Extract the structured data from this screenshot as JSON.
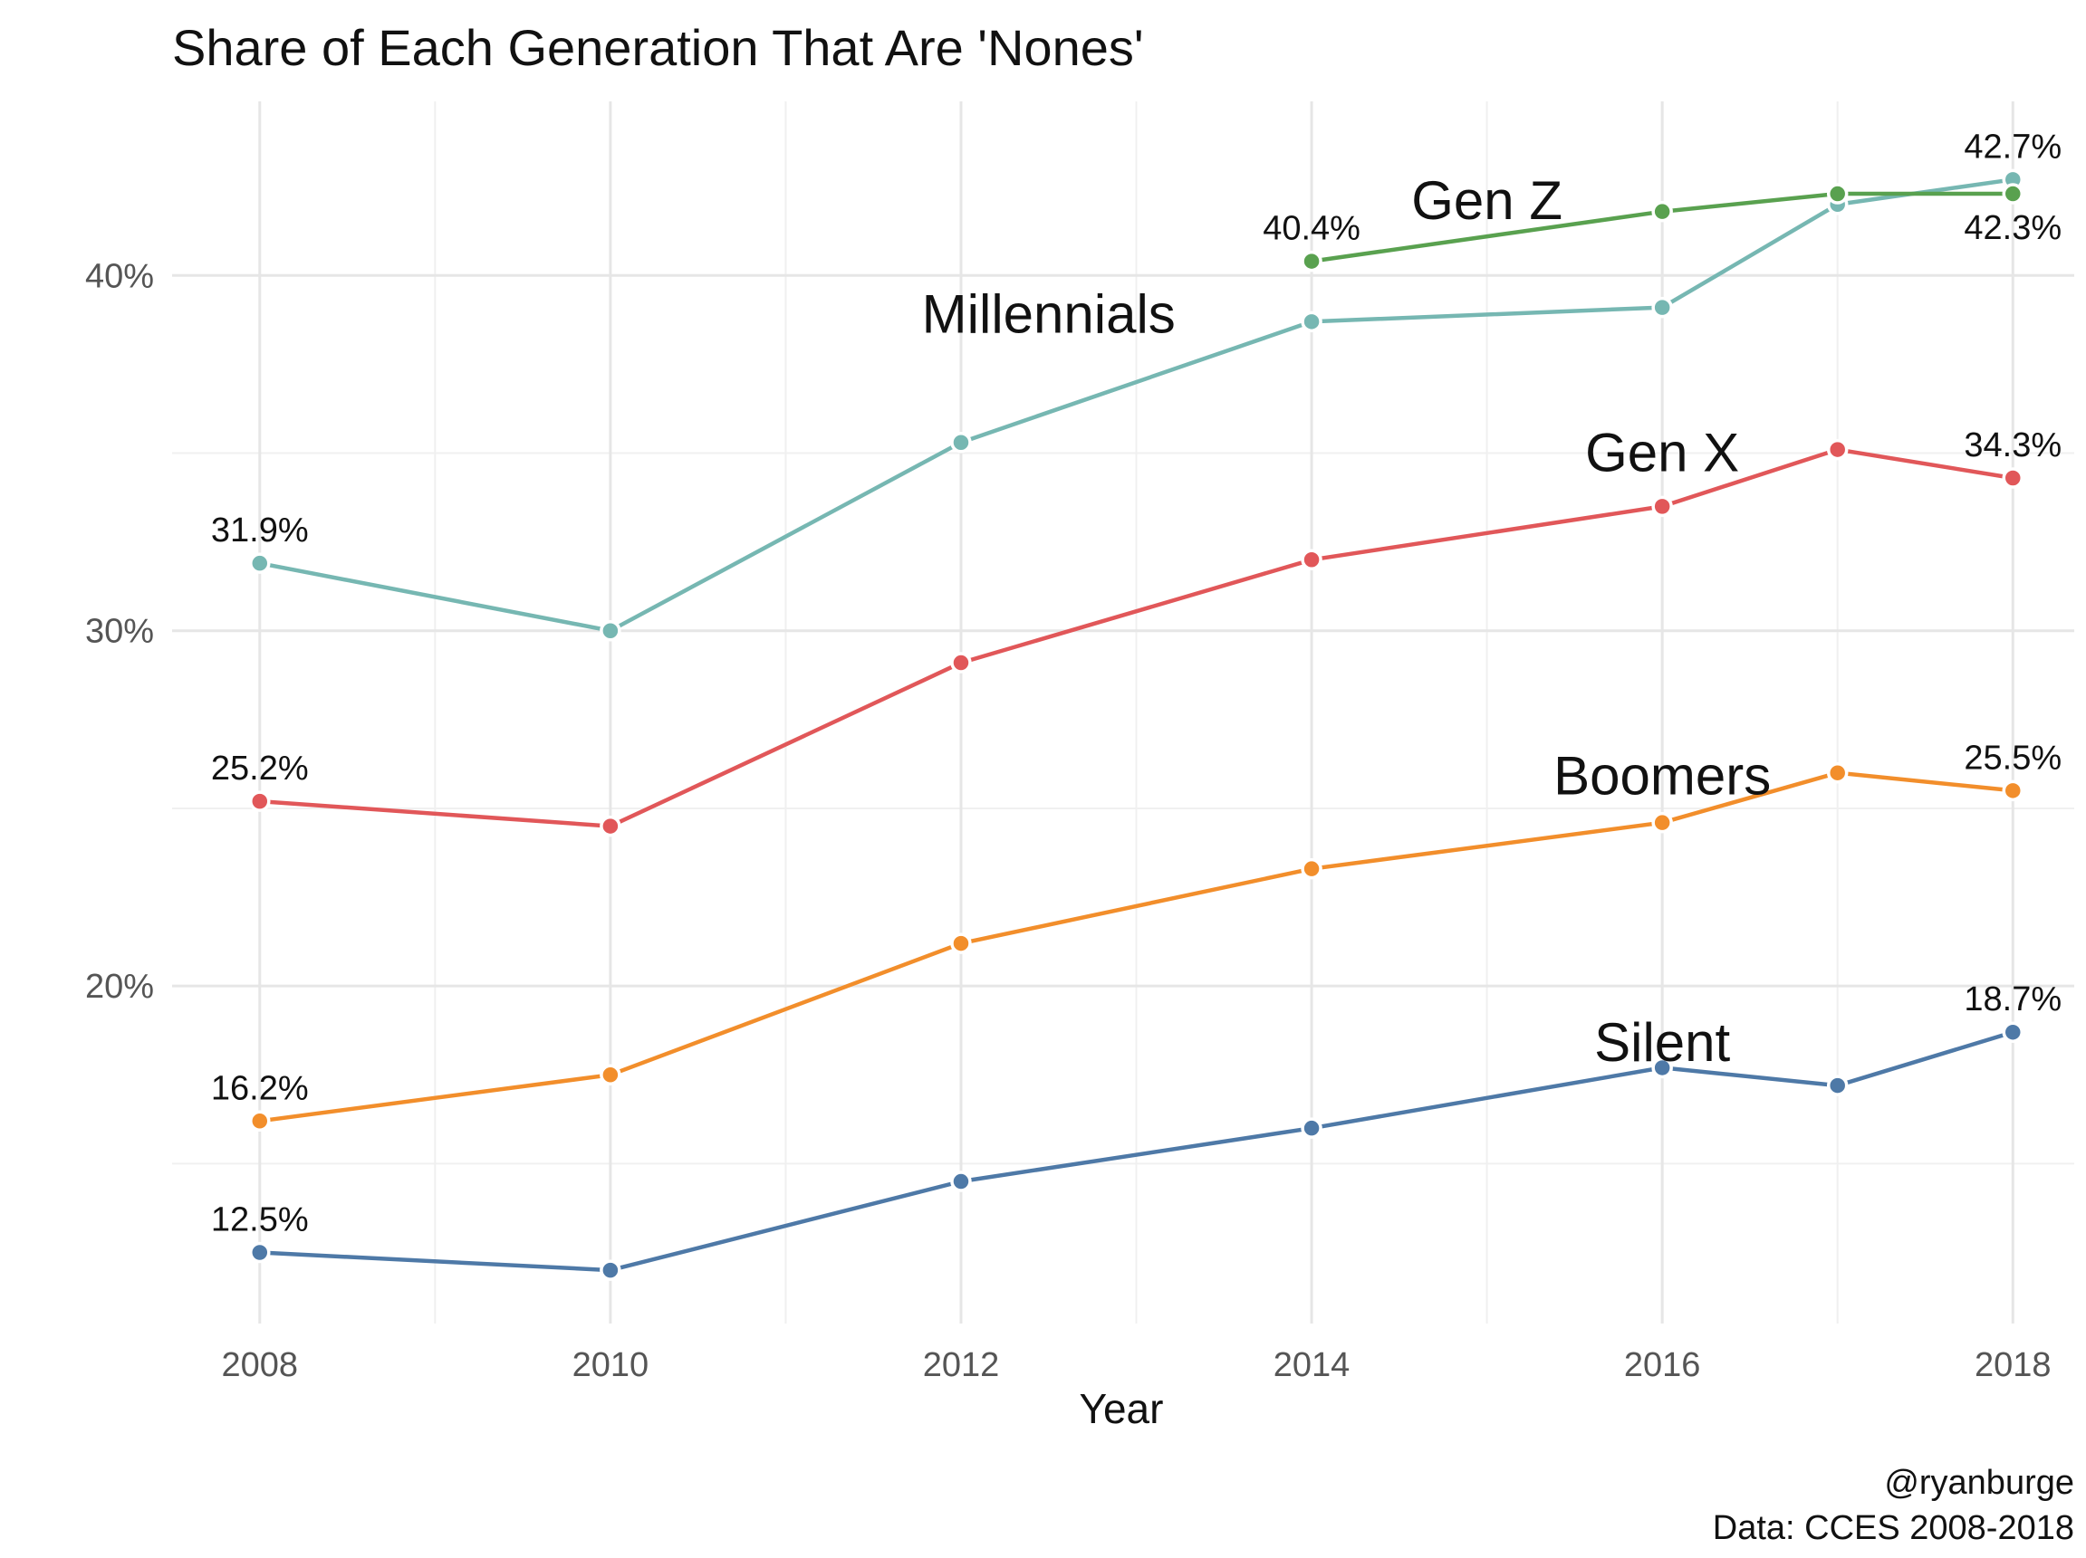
{
  "chart_data": {
    "type": "line",
    "title": "Share of Each Generation That Are 'Nones'",
    "xlabel": "Year",
    "ylabel": "",
    "xlim": [
      2007.5,
      2018.35
    ],
    "ylim": [
      10.5,
      44.9
    ],
    "x_ticks": [
      {
        "value": 2008,
        "label": "2008"
      },
      {
        "value": 2010,
        "label": "2010"
      },
      {
        "value": 2012,
        "label": "2012"
      },
      {
        "value": 2014,
        "label": "2014"
      },
      {
        "value": 2016,
        "label": "2016"
      },
      {
        "value": 2018,
        "label": "2018"
      }
    ],
    "y_ticks": [
      {
        "value": 20,
        "label": "20%"
      },
      {
        "value": 30,
        "label": "30%"
      },
      {
        "value": 40,
        "label": "40%"
      }
    ],
    "grid": true,
    "legend": "none (direct labels)",
    "series": [
      {
        "name": "Silent",
        "color": "#4e79a7",
        "x": [
          2008,
          2010,
          2012,
          2014,
          2016,
          2017,
          2018
        ],
        "values": [
          12.5,
          12.0,
          14.5,
          16.0,
          17.7,
          17.2,
          18.7
        ]
      },
      {
        "name": "Boomers",
        "color": "#f28e2b",
        "x": [
          2008,
          2010,
          2012,
          2014,
          2016,
          2017,
          2018
        ],
        "values": [
          16.2,
          17.5,
          21.2,
          23.3,
          24.6,
          26.0,
          25.5
        ]
      },
      {
        "name": "Gen X",
        "color": "#e15759",
        "x": [
          2008,
          2010,
          2012,
          2014,
          2016,
          2017,
          2018
        ],
        "values": [
          25.2,
          24.5,
          29.1,
          32.0,
          33.5,
          35.1,
          34.3
        ]
      },
      {
        "name": "Millennials",
        "color": "#76b7b2",
        "x": [
          2008,
          2010,
          2012,
          2014,
          2016,
          2017,
          2018
        ],
        "values": [
          31.9,
          30.0,
          35.3,
          38.7,
          39.1,
          42.0,
          42.7
        ]
      },
      {
        "name": "Gen Z",
        "color": "#59a14f",
        "x": [
          2014,
          2016,
          2017,
          2018
        ],
        "values": [
          40.4,
          41.8,
          42.3,
          42.3
        ]
      }
    ],
    "annotations": {
      "value_labels": [
        {
          "series": "Millennials",
          "x": 2008,
          "y": 31.9,
          "text": "31.9%",
          "pos": "above"
        },
        {
          "series": "Gen X",
          "x": 2008,
          "y": 25.2,
          "text": "25.2%",
          "pos": "above"
        },
        {
          "series": "Boomers",
          "x": 2008,
          "y": 16.2,
          "text": "16.2%",
          "pos": "above"
        },
        {
          "series": "Silent",
          "x": 2008,
          "y": 12.5,
          "text": "12.5%",
          "pos": "above"
        },
        {
          "series": "Gen Z",
          "x": 2014,
          "y": 40.4,
          "text": "40.4%",
          "pos": "above"
        },
        {
          "series": "Millennials",
          "x": 2018,
          "y": 42.7,
          "text": "42.7%",
          "pos": "above"
        },
        {
          "series": "Gen Z",
          "x": 2018,
          "y": 42.3,
          "text": "42.3%",
          "pos": "below"
        },
        {
          "series": "Gen X",
          "x": 2018,
          "y": 34.3,
          "text": "34.3%",
          "pos": "above"
        },
        {
          "series": "Boomers",
          "x": 2018,
          "y": 25.5,
          "text": "25.5%",
          "pos": "above"
        },
        {
          "series": "Silent",
          "x": 2018,
          "y": 18.7,
          "text": "18.7%",
          "pos": "above"
        }
      ],
      "series_labels": [
        {
          "text": "Gen Z",
          "x": 2015.0,
          "y": 42.1
        },
        {
          "text": "Millennials",
          "x": 2012.5,
          "y": 38.9
        },
        {
          "text": "Gen X",
          "x": 2016.0,
          "y": 35.0
        },
        {
          "text": "Boomers",
          "x": 2016.0,
          "y": 25.9
        },
        {
          "text": "Silent",
          "x": 2016.0,
          "y": 18.4
        }
      ]
    },
    "caption": [
      "@ryanburge",
      "Data: CCES 2008-2018"
    ]
  }
}
